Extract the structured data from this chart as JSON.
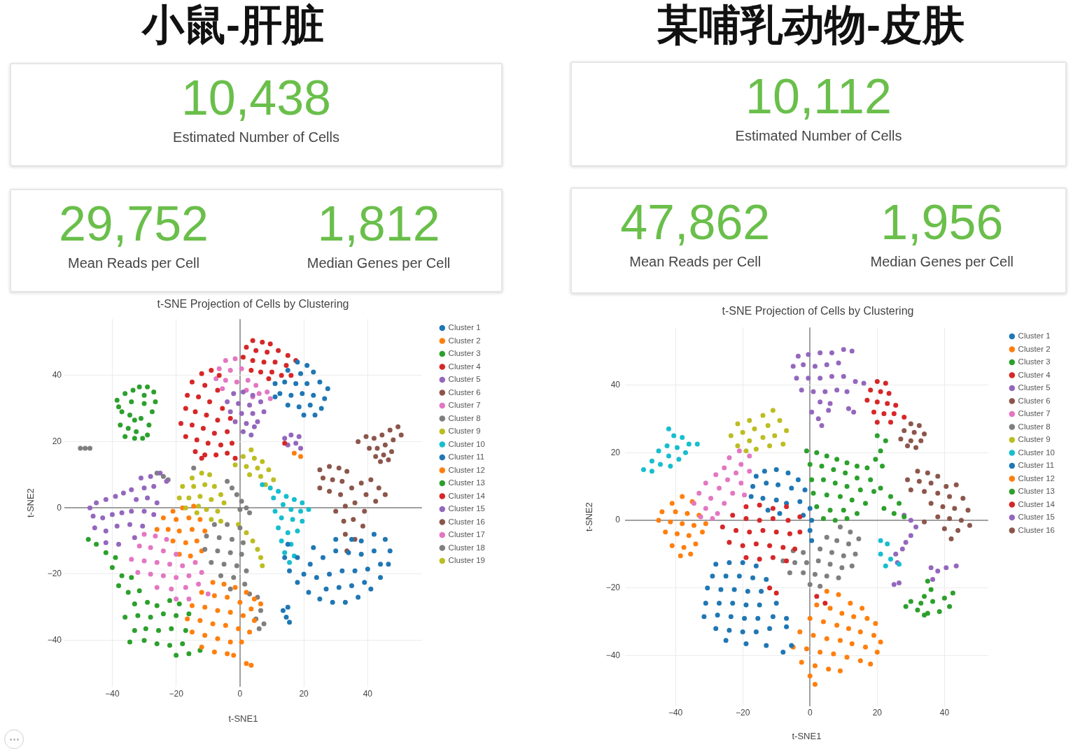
{
  "chart_data": [
    {
      "type": "other",
      "title": "小鼠-肝脏",
      "categories": [
        "Estimated Number of Cells",
        "Mean Reads per Cell",
        "Median Genes per Cell"
      ],
      "value_labels": [
        "10,438",
        "29,752",
        "1,812"
      ]
    },
    {
      "type": "scatter",
      "title": "t-SNE Projection of Cells by Clustering",
      "xlabel": "t-SNE1",
      "ylabel": "t-SNE2",
      "xlim": [
        -55,
        57
      ],
      "ylim": [
        -54,
        57
      ],
      "xticks": [
        -40,
        -20,
        0,
        20,
        40
      ],
      "yticks": [
        -40,
        -20,
        0,
        20,
        40
      ],
      "grid": true,
      "legend": "top right",
      "marker": "circle",
      "series": [
        {
          "name": "Cluster 1",
          "color": "#1f77b4",
          "x": [
            15,
            14,
            15.5,
            18,
            21.5,
            25,
            29,
            33,
            37,
            41,
            44,
            46.5,
            47,
            45.5,
            42,
            38,
            35,
            18,
            22,
            26,
            30,
            34,
            38,
            42,
            20,
            24,
            28,
            32,
            36,
            40,
            44,
            27,
            31,
            35,
            39,
            23,
            30,
            13.5,
            14.5,
            15.5,
            15
          ],
          "values": [
            -11,
            -15,
            -19,
            -22.5,
            -25.5,
            -27.5,
            -28.5,
            -28.5,
            -27,
            -24.5,
            -21,
            -17,
            -13,
            -9.5,
            -8,
            -10,
            -9.5,
            -15,
            -17,
            -15,
            -13,
            -13.5,
            -14,
            -13,
            -20,
            -21,
            -20,
            -19,
            -19,
            -18.5,
            -17,
            -24.5,
            -24,
            -23.5,
            -22.5,
            -12,
            -9.5,
            -31,
            -33,
            -34.5,
            -30
          ]
        },
        {
          "name": "Cluster 2",
          "color": "#ff7f0e",
          "x": [
            -8.5,
            -5,
            -1.5,
            2,
            4.5,
            -12,
            -8,
            -4,
            0,
            3.5,
            6.5,
            -15,
            -11,
            -7,
            -3,
            1,
            4.5,
            -16.5,
            -12.5,
            -8.5,
            -4.5,
            -0.5,
            3,
            -15,
            -11,
            -7,
            -3,
            0.5,
            -12,
            -8,
            -4,
            -2,
            2,
            3.5
          ],
          "values": [
            -22.5,
            -23,
            -24,
            -25.5,
            -27.5,
            -25.5,
            -26.5,
            -27,
            -28.5,
            -30.5,
            -29,
            -29.5,
            -30,
            -31,
            -31.5,
            -32.5,
            -34,
            -33.5,
            -34,
            -35,
            -35.5,
            -36.5,
            -37.5,
            -37.5,
            -38.5,
            -39.5,
            -40.5,
            -40.5,
            -42,
            -43.5,
            -44,
            -44.5,
            -47,
            -47.5
          ]
        },
        {
          "name": "Cluster 3",
          "color": "#2ca02c",
          "x": [
            -47.5,
            -45,
            -42,
            -39,
            -40,
            -37,
            -34,
            -38,
            -35,
            -31.5,
            -33,
            -29,
            -26,
            -22,
            -19,
            -36,
            -32,
            -28,
            -24,
            -20,
            -16,
            -33,
            -29.5,
            -25.5,
            -21.5,
            -17,
            -34.5,
            -30,
            -26,
            -22,
            -18,
            -20,
            -16,
            -12.5
          ],
          "values": [
            -9.5,
            -11,
            -13.5,
            -15,
            -18,
            -20.5,
            -21,
            -23.5,
            -25.5,
            -25,
            -29,
            -28.5,
            -29.5,
            -28,
            -29,
            -33,
            -32.5,
            -33,
            -32,
            -32.5,
            -32,
            -37,
            -36.5,
            -37,
            -36.5,
            -37,
            -40.5,
            -40,
            -41,
            -41.5,
            -41,
            -44.5,
            -44,
            -43
          ]
        },
        {
          "name": "Cluster 4",
          "color": "#d62728",
          "x": [
            -12,
            -9,
            -6.5,
            -15,
            -11,
            -7,
            -16.5,
            -13,
            -9.5,
            -5.5,
            -17,
            -14,
            -10.5,
            -7,
            -3,
            -18.5,
            -15,
            -11.5,
            -8,
            -4,
            -17,
            -13.5,
            -10,
            -6,
            -2.5,
            -14,
            -11,
            -7.5,
            -4,
            -12,
            -1.5
          ],
          "values": [
            40.5,
            41.5,
            40,
            38,
            37,
            35.5,
            34,
            33.5,
            32,
            30,
            30,
            29,
            28,
            26.5,
            27,
            25.5,
            25,
            24,
            22.5,
            23,
            21.5,
            20.5,
            19.5,
            19,
            19.5,
            17,
            16,
            16,
            16.5,
            15,
            15
          ]
        },
        {
          "name": "Cluster 5",
          "color": "#9467bd",
          "x": [
            -25,
            -28,
            -31,
            -23,
            -27,
            -30,
            -34,
            -36.5,
            -39,
            -42,
            -45,
            -47,
            -32.5,
            -29,
            -26,
            -46,
            -43,
            -40,
            -37,
            -34,
            -30,
            -27,
            -45.5,
            -42,
            -38.5,
            -34.5,
            -30.5,
            -42,
            -38,
            -33
          ],
          "values": [
            10.5,
            9.5,
            9,
            8,
            6.5,
            6,
            5.5,
            4.5,
            3.5,
            2.5,
            1.5,
            0,
            2.5,
            3,
            1.5,
            -2.5,
            -3,
            -2,
            -1.5,
            -1,
            -1,
            -2,
            -6,
            -7,
            -5.5,
            -5,
            -5.5,
            -10.5,
            -11,
            -9
          ]
        },
        {
          "name": "Cluster 6",
          "color": "#8c564b",
          "x": [
            25,
            28,
            31,
            33.5,
            26,
            29,
            32,
            35,
            25,
            28,
            31.5,
            38,
            41,
            43.5,
            45.5,
            39.5,
            42.5,
            36,
            33,
            39,
            30,
            32.5,
            35.5,
            38.5,
            33,
            36,
            33.5
          ],
          "values": [
            11.5,
            12.5,
            12,
            11,
            9,
            8.5,
            8,
            6,
            6,
            5,
            4,
            7.5,
            8.5,
            6,
            4,
            4,
            2,
            1.5,
            0.5,
            -1,
            -1,
            -4,
            -3.5,
            -5.5,
            -8,
            -9.5,
            -13
          ]
        },
        {
          "name": "Cluster 7",
          "color": "#e377c2",
          "x": [
            -30,
            -26.5,
            -23,
            -31.5,
            -28,
            -24,
            -20,
            -34,
            -30,
            -26,
            -22,
            -18,
            -14,
            -32,
            -28,
            -24,
            -20,
            -16,
            -12,
            -26,
            -21.5,
            -17,
            -13,
            -20,
            -16,
            -10
          ],
          "values": [
            -8,
            -8.5,
            -9.5,
            -11.5,
            -12,
            -13,
            -14,
            -15.5,
            -16,
            -16.5,
            -17,
            -17.5,
            -16.5,
            -19.5,
            -20,
            -20.5,
            -21,
            -20.5,
            -19.5,
            -24,
            -24.5,
            -24,
            -23,
            -27.5,
            -27.5,
            -26
          ]
        },
        {
          "name": "Cluster 8",
          "color": "#7f7f7f",
          "x": [
            0,
            3,
            -8,
            -4,
            0,
            -10.5,
            -6.5,
            -2.5,
            1,
            -11,
            -7,
            -3,
            0.5,
            -9,
            -5,
            -1,
            2,
            -6,
            -2,
            1.5,
            -3,
            3,
            5.5,
            6.5,
            5,
            7.5,
            6
          ],
          "values": [
            -0.5,
            -1.5,
            -5,
            -5,
            -6,
            -8.5,
            -9,
            -9.5,
            -10.5,
            -12.5,
            -13,
            -13.5,
            -14,
            -16.5,
            -17,
            -17.5,
            -19,
            -20.5,
            -21,
            -23,
            -24.5,
            -26,
            -27,
            -31,
            -33.5,
            -35,
            -36.5
          ]
        },
        {
          "name": "Cluster 9",
          "color": "#bcbd22",
          "x": [
            -12,
            -9.5,
            -15,
            -18,
            -14.5,
            -11,
            -8,
            -6,
            -19,
            -16,
            -12.5,
            -9,
            -5,
            -17,
            -13,
            -10.5,
            -7,
            -13.5,
            -9,
            -6
          ],
          "values": [
            10.5,
            10,
            9,
            6.5,
            6.5,
            7,
            6.5,
            4,
            3,
            3,
            3.5,
            2.5,
            1.5,
            0,
            0.5,
            -0.5,
            -1,
            -1.5,
            -3.5,
            -4
          ]
        },
        {
          "name": "Cluster 10",
          "color": "#17becf",
          "x": [
            7,
            9.5,
            12,
            14.5,
            17,
            19.5,
            10.5,
            13.5,
            16,
            19,
            21.5,
            11,
            13,
            16.5,
            19.5,
            12,
            15,
            18,
            13,
            16,
            14,
            17,
            15.5
          ],
          "values": [
            7,
            6,
            5,
            3.5,
            2.5,
            1.5,
            3,
            1,
            -0.5,
            -1,
            -0.5,
            -1,
            -3,
            -3.5,
            -4,
            -6,
            -7.5,
            -7,
            -10,
            -11,
            -13.5,
            -14.5,
            -16.5
          ]
        },
        {
          "name": "Cluster 11",
          "color": "#1f77b4",
          "x": [
            18,
            21,
            15,
            19,
            23,
            11,
            14,
            17.5,
            21,
            25,
            27.5,
            12.5,
            16,
            19.5,
            23,
            26.5,
            15,
            18.5,
            22,
            25.5,
            20,
            23.5,
            11
          ],
          "values": [
            44,
            43,
            41.5,
            40.5,
            41,
            37.5,
            38,
            37.5,
            37.5,
            38,
            36,
            34.5,
            34,
            34.5,
            34,
            33,
            31,
            30.5,
            31,
            30,
            28,
            28,
            33.5
          ]
        },
        {
          "name": "Cluster 12",
          "color": "#ff7f0e",
          "x": [
            -18,
            -14.5,
            -21,
            -24,
            -20,
            -16,
            -12.5,
            -26,
            -22.5,
            -19,
            -15,
            -11,
            -21,
            -17,
            -13.5,
            -19,
            -15.5,
            -12,
            17,
            19
          ],
          "values": [
            0,
            0.5,
            -1,
            -3,
            -3.5,
            -3,
            -3.5,
            -6.5,
            -6.5,
            -7,
            -6.5,
            -7,
            -10,
            -10.5,
            -10,
            -14,
            -14.5,
            -13,
            16.5,
            15.5
          ]
        },
        {
          "name": "Cluster 13",
          "color": "#2ca02c",
          "x": [
            -31.5,
            -29,
            -27,
            -26.5,
            -38.5,
            -36,
            -33.5,
            -34,
            -30,
            -27.5,
            -37,
            -34.5,
            -31,
            -28.5,
            -37.5,
            -35,
            -32.5,
            -29,
            -36,
            -33,
            -30.5,
            -38,
            -30,
            -33
          ],
          "values": [
            36.5,
            36.5,
            35,
            32,
            32.5,
            34.5,
            35.5,
            32,
            31.5,
            29,
            29,
            28,
            27,
            25,
            25,
            24,
            23,
            22,
            21.5,
            21,
            21,
            30.5,
            34,
            26.5
          ]
        },
        {
          "name": "Cluster 14",
          "color": "#d62728",
          "x": [
            4,
            7,
            9.5,
            2,
            5,
            8.5,
            12,
            15,
            1,
            4,
            7.5,
            11,
            14.5,
            17.5,
            3.5,
            6.5,
            10,
            13,
            16,
            9,
            14
          ],
          "values": [
            50.5,
            50,
            49.5,
            48.5,
            47.5,
            47,
            47.5,
            46,
            45.5,
            44.5,
            44,
            44,
            43,
            44.5,
            41.5,
            41,
            41,
            40,
            40,
            39,
            19.5
          ]
        },
        {
          "name": "Cluster 15",
          "color": "#9467bd",
          "x": [
            -2,
            1,
            4,
            -4,
            -0.5,
            3,
            6.5,
            -3,
            0.5,
            4,
            7.5,
            -1.5,
            2,
            5.5,
            1,
            3.5,
            4.5,
            14,
            16,
            18.5,
            15,
            17.5,
            19
          ],
          "values": [
            34.5,
            35,
            34,
            32,
            31.5,
            31,
            32,
            29,
            28.5,
            28.5,
            29,
            26,
            25.5,
            26,
            23,
            22,
            24.5,
            21,
            22,
            21.5,
            19,
            19.5,
            18
          ]
        },
        {
          "name": "Cluster 16",
          "color": "#8c564b",
          "x": [
            37,
            39.5,
            42,
            44.5,
            47,
            49.5,
            50.5,
            48,
            45.5,
            43,
            40.5,
            42.5,
            45,
            47.5,
            44,
            46.5
          ],
          "values": [
            20,
            21.5,
            21,
            22,
            23.5,
            24.5,
            22,
            20.5,
            19,
            18,
            18,
            15.5,
            16,
            17,
            14,
            14.5
          ]
        },
        {
          "name": "Cluster 17",
          "color": "#e377c2",
          "x": [
            -4.5,
            -1.5,
            -6.5,
            -3,
            0.5,
            -7.5,
            -4.5,
            -1,
            2.5,
            5,
            -5.5,
            2,
            6,
            8.5,
            4,
            9.5
          ],
          "values": [
            44.5,
            45,
            42,
            41.5,
            42,
            39,
            38.5,
            38,
            38.5,
            37,
            36,
            35.5,
            34.5,
            35,
            33.5,
            33
          ]
        },
        {
          "name": "Cluster 18",
          "color": "#7f7f7f",
          "x": [
            -50,
            -48.5,
            -47,
            -26,
            -24,
            -22.5,
            -14.5,
            -4,
            -2.5,
            -1,
            0.5,
            2
          ],
          "values": [
            18,
            18,
            18,
            10.5,
            9.5,
            8.5,
            12,
            8,
            6,
            4,
            2,
            0
          ]
        },
        {
          "name": "Cluster 19",
          "color": "#bcbd22",
          "x": [
            3.5,
            1,
            4.5,
            7,
            -1.5,
            2,
            5.5,
            9,
            3,
            6.5,
            10.5,
            8,
            -0.5,
            2,
            4,
            5.5,
            6.5,
            7
          ],
          "values": [
            17.5,
            15.5,
            15,
            14,
            13,
            12.5,
            12,
            11.5,
            10,
            9.5,
            8.5,
            7,
            -5,
            -7.5,
            -10,
            -12.5,
            -15,
            -17.5
          ]
        }
      ]
    },
    {
      "type": "other",
      "title": "某哺乳动物-皮肤",
      "categories": [
        "Estimated Number of Cells",
        "Mean Reads per Cell",
        "Median Genes per Cell"
      ],
      "value_labels": [
        "10,112",
        "47,862",
        "1,956"
      ]
    },
    {
      "type": "scatter",
      "title": "t-SNE Projection of Cells by Clustering",
      "xlabel": "t-SNE1",
      "ylabel": "t-SNE2",
      "xlim": [
        -55,
        53
      ],
      "ylim": [
        -55,
        57
      ],
      "xticks": [
        -40,
        -20,
        0,
        20,
        40
      ],
      "yticks": [
        -40,
        -20,
        0,
        20,
        40
      ],
      "grid": true,
      "legend": "top right",
      "marker": "circle",
      "series": [
        {
          "name": "Cluster 1",
          "color": "#1f77b4",
          "x": [
            -28,
            -24,
            -20,
            -16,
            -29,
            -25,
            -21,
            -17,
            -13,
            -30.5,
            -26.5,
            -22.5,
            -18.5,
            -14.5,
            -31,
            -27,
            -23,
            -19,
            -15,
            -10,
            -31.5,
            -27.5,
            -23.5,
            -19.5,
            -15.5,
            -11,
            -7,
            -28,
            -24,
            -20,
            -16,
            -12,
            -7,
            -25,
            -19,
            -13,
            -8,
            -5.5
          ],
          "values": [
            -13,
            -12.5,
            -12.5,
            -13.5,
            -16.5,
            -16.5,
            -16.5,
            -17,
            -17.5,
            -20,
            -20.5,
            -20.5,
            -21,
            -21,
            -24.5,
            -24.5,
            -24.5,
            -25,
            -25,
            -24.5,
            -28.5,
            -28,
            -28.5,
            -29,
            -29,
            -28.5,
            -29,
            -32,
            -32.5,
            -33,
            -33,
            -32,
            -31.5,
            -35.5,
            -36.5,
            -37,
            -39,
            -37
          ]
        },
        {
          "name": "Cluster 2",
          "color": "#ff7f0e",
          "x": [
            5,
            8.5,
            12,
            15.5,
            2,
            6,
            9.5,
            13,
            17,
            19.5,
            0,
            4,
            8,
            11.5,
            15,
            19,
            21,
            -3,
            1,
            5,
            9,
            12.5,
            16.5,
            20,
            -5,
            -1,
            3,
            7,
            11,
            15,
            18,
            -2.5,
            1.5,
            5.5,
            9,
            0,
            1.5
          ],
          "values": [
            -21,
            -22,
            -24.5,
            -26,
            -25,
            -26,
            -27.5,
            -28.5,
            -29,
            -30.5,
            -29,
            -30,
            -31,
            -32,
            -33,
            -34,
            -36,
            -33,
            -34,
            -35,
            -35.5,
            -36.5,
            -37.5,
            -39,
            -37.5,
            -38,
            -39,
            -39.5,
            -40.5,
            -41.5,
            -42.5,
            -42,
            -43,
            -44,
            -44.5,
            -46,
            -48.5
          ]
        },
        {
          "name": "Cluster 3",
          "color": "#2ca02c",
          "x": [
            -1,
            2,
            5,
            8,
            11,
            14,
            17,
            0,
            3.5,
            7,
            10.5,
            14,
            18,
            0.5,
            4,
            7.5,
            11,
            15,
            19,
            1,
            5,
            9,
            12.5,
            16.5,
            2,
            6,
            10,
            14,
            4,
            11,
            7.5,
            20,
            22.5,
            21,
            19.5,
            21.5,
            21,
            24,
            26.5,
            22,
            25,
            28
          ],
          "values": [
            20.5,
            20,
            19,
            18,
            17,
            16,
            15.5,
            16.5,
            16,
            15,
            14,
            12.5,
            12,
            12,
            12,
            11,
            10,
            9,
            8.5,
            8,
            7.5,
            7,
            6,
            5,
            4,
            3,
            3,
            2,
            0.5,
            0.5,
            0,
            25,
            23.5,
            20.5,
            18,
            16,
            9.5,
            7,
            5,
            3.5,
            2,
            1
          ]
        },
        {
          "name": "Cluster 4",
          "color": "#d62728",
          "x": [
            -19,
            -15,
            -11,
            -7,
            -23,
            -19,
            -15,
            -11,
            -6.5,
            -3,
            -26,
            -22,
            -18,
            -14,
            -10,
            -6,
            -3,
            -24,
            -20,
            -16,
            -12,
            -8,
            -4.5,
            -19,
            -15,
            -11,
            -7,
            -12,
            -10,
            2,
            4.5
          ],
          "values": [
            4,
            4.5,
            3.5,
            4,
            1.5,
            0.5,
            0,
            0.5,
            0,
            1,
            -2,
            -3,
            -3.5,
            -3,
            -3.5,
            -4,
            -3.5,
            -6.5,
            -7.5,
            -7,
            -7.5,
            -8,
            -8.5,
            -11,
            -11.5,
            -11,
            -12,
            -20,
            -21.5,
            -22.5,
            -24.5
          ]
        },
        {
          "name": "Cluster 5",
          "color": "#9467bd",
          "x": [
            -3.5,
            -0.5,
            3,
            6.5,
            10,
            12.5,
            -5,
            -2,
            1.5,
            5,
            8.5,
            -4,
            -0.5,
            3,
            6.5,
            10,
            13.5,
            16,
            -2.5,
            1,
            4.5,
            8,
            11,
            3,
            6,
            5.5,
            0.5,
            2.5,
            3.5,
            11.5,
            13
          ],
          "values": [
            48.5,
            49,
            49.5,
            49.5,
            50.5,
            50,
            45.5,
            46,
            45.5,
            46,
            46.5,
            42,
            42,
            42,
            42.5,
            42.5,
            41,
            40.5,
            38.5,
            38,
            38,
            38.5,
            38,
            35,
            34.5,
            32.5,
            32,
            30,
            28,
            33,
            32
          ]
        },
        {
          "name": "Cluster 6",
          "color": "#8c564b",
          "x": [
            32,
            35,
            38,
            29,
            32.5,
            36,
            40.5,
            43.5,
            30,
            34,
            38,
            41.5,
            45.5,
            36,
            39.5,
            43,
            47,
            38,
            41.5,
            45,
            34,
            40,
            44,
            47.5,
            42
          ],
          "values": [
            14.5,
            14,
            13,
            12,
            11.5,
            11,
            10,
            10.5,
            9,
            8.5,
            8,
            7,
            6.5,
            5,
            4,
            3.5,
            3,
            1,
            0.5,
            0,
            -0.5,
            -2.5,
            -3,
            -1.5,
            -5.5
          ]
        },
        {
          "name": "Cluster 7",
          "color": "#e377c2",
          "x": [
            -21,
            -18,
            -24,
            -20.5,
            -25.5,
            -22,
            -18,
            -28,
            -24.5,
            -20.5,
            -31,
            -27,
            -23,
            -19.5,
            -33,
            -29.5,
            -25.5,
            -34.5,
            -31,
            -27.5,
            -29,
            -32.5
          ],
          "values": [
            20.5,
            19,
            18.5,
            16.5,
            15.5,
            14,
            14.5,
            13.5,
            12,
            11,
            11,
            9.5,
            8,
            7.5,
            8,
            6.5,
            5,
            5,
            3.5,
            2,
            0.5,
            1
          ]
        },
        {
          "name": "Cluster 8",
          "color": "#7f7f7f",
          "x": [
            9,
            12,
            14.5,
            5,
            8,
            11.5,
            3,
            6.5,
            10,
            13.5,
            -5,
            -2,
            -8,
            -4.5,
            -1,
            2.5,
            6,
            9.5,
            12.5,
            -6,
            -2,
            1.5,
            5,
            8.5,
            0,
            3
          ],
          "values": [
            -2,
            -3.5,
            -5.5,
            -5,
            -6,
            -7,
            -8.5,
            -9.5,
            -10.5,
            -10,
            -9,
            -9.5,
            -12,
            -12.5,
            -12.5,
            -12,
            -13,
            -14,
            -13.5,
            -15.5,
            -15.5,
            -16,
            -16.5,
            -17,
            -19,
            -19.5
          ]
        },
        {
          "name": "Cluster 9",
          "color": "#bcbd22",
          "x": [
            -11,
            -14,
            -18,
            -21.5,
            -9,
            -12.5,
            -16.5,
            -20,
            -23.5,
            -7,
            -10.5,
            -14,
            -18,
            -21.5,
            -8,
            -12,
            -16,
            -19
          ],
          "values": [
            32.5,
            31,
            29.5,
            28.5,
            29.5,
            28,
            27,
            26,
            25,
            26.5,
            25,
            24.5,
            23.5,
            22,
            22.5,
            22,
            21,
            20.5
          ]
        },
        {
          "name": "Cluster 10",
          "color": "#17becf",
          "x": [
            -42,
            -40.5,
            -38,
            -36,
            -42.5,
            -39.5,
            -37,
            -45,
            -42,
            -39,
            -47,
            -44.5,
            -41.5,
            -49.5,
            -47,
            -33.5,
            21,
            23,
            21,
            24,
            26.5,
            22.5
          ],
          "values": [
            27,
            25,
            24.5,
            22.5,
            22,
            21.5,
            20,
            20.5,
            19,
            18,
            17.5,
            16.5,
            16,
            15,
            14.5,
            22.5,
            -6,
            -7,
            -10,
            -11.5,
            -13,
            -13.5
          ]
        },
        {
          "name": "Cluster 11",
          "color": "#1f77b4",
          "x": [
            -13.5,
            -10,
            -6.5,
            -3.5,
            -16,
            -17,
            -13,
            -9.5,
            -5.5,
            -1.5,
            -17.5,
            -14,
            -10,
            -7,
            -3,
            0,
            -12.5,
            -9,
            -2,
            0.5,
            0,
            0.5
          ],
          "values": [
            14.5,
            15,
            14,
            12,
            13,
            10,
            11,
            10.5,
            9.5,
            9,
            7,
            6.5,
            6,
            5,
            5.5,
            3.5,
            3,
            2,
            1.5,
            0,
            -3,
            -6
          ]
        },
        {
          "name": "Cluster 12",
          "color": "#ff7f0e",
          "x": [
            -38,
            -35,
            -41,
            -44,
            -40,
            -36.5,
            -33,
            -45,
            -41.5,
            -38,
            -34.5,
            -31,
            -43,
            -39.5,
            -36,
            -32,
            -41,
            -37.5,
            -34,
            -38.5,
            -35.5
          ],
          "values": [
            7,
            5.5,
            5,
            2.5,
            2.5,
            2,
            1.5,
            0,
            -0.5,
            -1,
            -1.5,
            -1,
            -3.5,
            -4,
            -4.5,
            -3.5,
            -7.5,
            -8,
            -7,
            -10.5,
            -10
          ]
        },
        {
          "name": "Cluster 13",
          "color": "#2ca02c",
          "x": [
            35,
            36,
            34,
            30,
            33,
            36.5,
            40,
            42.5,
            28.5,
            32,
            35,
            38.5,
            41.5,
            34
          ],
          "values": [
            -18,
            -20.5,
            -22.5,
            -24,
            -24.5,
            -24,
            -23,
            -21.5,
            -25.5,
            -26.5,
            -27.5,
            -27,
            -25.5,
            -28
          ]
        },
        {
          "name": "Cluster 14",
          "color": "#d62728",
          "x": [
            20,
            22.5,
            18,
            21,
            23.5,
            17,
            20,
            23,
            25.5,
            19,
            22,
            25,
            28,
            20,
            24
          ],
          "values": [
            41,
            40.5,
            38.5,
            38,
            37.5,
            35.5,
            35,
            34.5,
            34,
            32,
            31.5,
            31.5,
            30.5,
            29,
            29
          ]
        },
        {
          "name": "Cluster 15",
          "color": "#9467bd",
          "x": [
            28,
            30,
            31.5,
            30,
            28.5,
            27.5,
            25.5,
            26,
            36,
            38,
            40.5,
            43.5,
            36.5,
            25,
            26.5
          ],
          "values": [
            1.5,
            0,
            -2,
            -4.5,
            -6.5,
            -8.5,
            -10,
            -12.5,
            -14,
            -15,
            -14,
            -13.5,
            -17.5,
            -19,
            -18.5
          ]
        },
        {
          "name": "Cluster 16",
          "color": "#8c564b",
          "x": [
            30,
            32.5,
            28,
            31,
            34,
            27,
            30,
            33,
            29,
            31.5
          ],
          "values": [
            28.5,
            28,
            26.5,
            26,
            25.5,
            24,
            23.5,
            23.5,
            22,
            21.5
          ]
        }
      ]
    }
  ]
}
